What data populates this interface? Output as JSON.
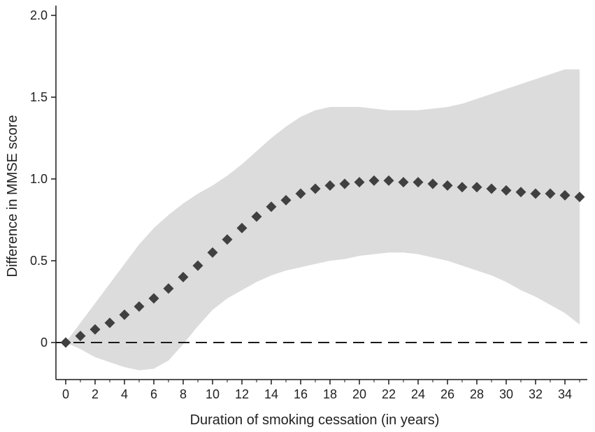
{
  "chart_data": {
    "type": "scatter",
    "title": "",
    "xlabel": "Duration of smoking cessation (in years)",
    "ylabel": "Difference in MMSE score",
    "xlim": [
      0,
      35
    ],
    "ylim": [
      -0.2,
      2.05
    ],
    "x_ticks": [
      0,
      2,
      4,
      6,
      8,
      10,
      12,
      14,
      16,
      18,
      20,
      22,
      24,
      26,
      28,
      30,
      32,
      34
    ],
    "y_ticks": [
      {
        "value": 0,
        "label": "0"
      },
      {
        "value": 0.5,
        "label": "0.5"
      },
      {
        "value": 1.0,
        "label": "1.0"
      },
      {
        "value": 1.5,
        "label": "1.5"
      },
      {
        "value": 2.0,
        "label": "2.0"
      }
    ],
    "grid": false,
    "reference_line": {
      "y": 0,
      "style": "dashed"
    },
    "series": [
      {
        "marker": "diamond",
        "color": "#404040",
        "x": [
          0,
          1,
          2,
          3,
          4,
          5,
          6,
          7,
          8,
          9,
          10,
          11,
          12,
          13,
          14,
          15,
          16,
          17,
          18,
          19,
          20,
          21,
          22,
          23,
          24,
          25,
          26,
          27,
          28,
          29,
          30,
          31,
          32,
          33,
          34,
          35
        ],
        "y": [
          0.0,
          0.04,
          0.08,
          0.12,
          0.17,
          0.22,
          0.27,
          0.33,
          0.4,
          0.47,
          0.55,
          0.63,
          0.7,
          0.77,
          0.83,
          0.87,
          0.91,
          0.94,
          0.96,
          0.97,
          0.98,
          0.99,
          0.99,
          0.98,
          0.98,
          0.97,
          0.96,
          0.95,
          0.95,
          0.94,
          0.93,
          0.92,
          0.91,
          0.91,
          0.9,
          0.89
        ]
      }
    ],
    "confidence_band": {
      "color": "#dcdcdc",
      "x": [
        0,
        1,
        2,
        3,
        4,
        5,
        6,
        7,
        8,
        9,
        10,
        11,
        12,
        13,
        14,
        15,
        16,
        17,
        18,
        19,
        20,
        21,
        22,
        23,
        24,
        25,
        26,
        27,
        28,
        29,
        30,
        31,
        32,
        33,
        34,
        35
      ],
      "upper": [
        0.0,
        0.12,
        0.24,
        0.36,
        0.48,
        0.6,
        0.7,
        0.78,
        0.85,
        0.91,
        0.96,
        1.02,
        1.09,
        1.17,
        1.25,
        1.32,
        1.38,
        1.42,
        1.44,
        1.44,
        1.44,
        1.43,
        1.42,
        1.42,
        1.42,
        1.43,
        1.44,
        1.46,
        1.49,
        1.52,
        1.55,
        1.58,
        1.61,
        1.64,
        1.67,
        1.67
      ],
      "lower": [
        0.0,
        -0.04,
        -0.09,
        -0.12,
        -0.15,
        -0.17,
        -0.16,
        -0.11,
        -0.01,
        0.1,
        0.2,
        0.27,
        0.32,
        0.37,
        0.41,
        0.44,
        0.46,
        0.48,
        0.5,
        0.51,
        0.53,
        0.54,
        0.55,
        0.55,
        0.54,
        0.52,
        0.5,
        0.47,
        0.44,
        0.41,
        0.37,
        0.32,
        0.28,
        0.23,
        0.18,
        0.11
      ]
    }
  }
}
